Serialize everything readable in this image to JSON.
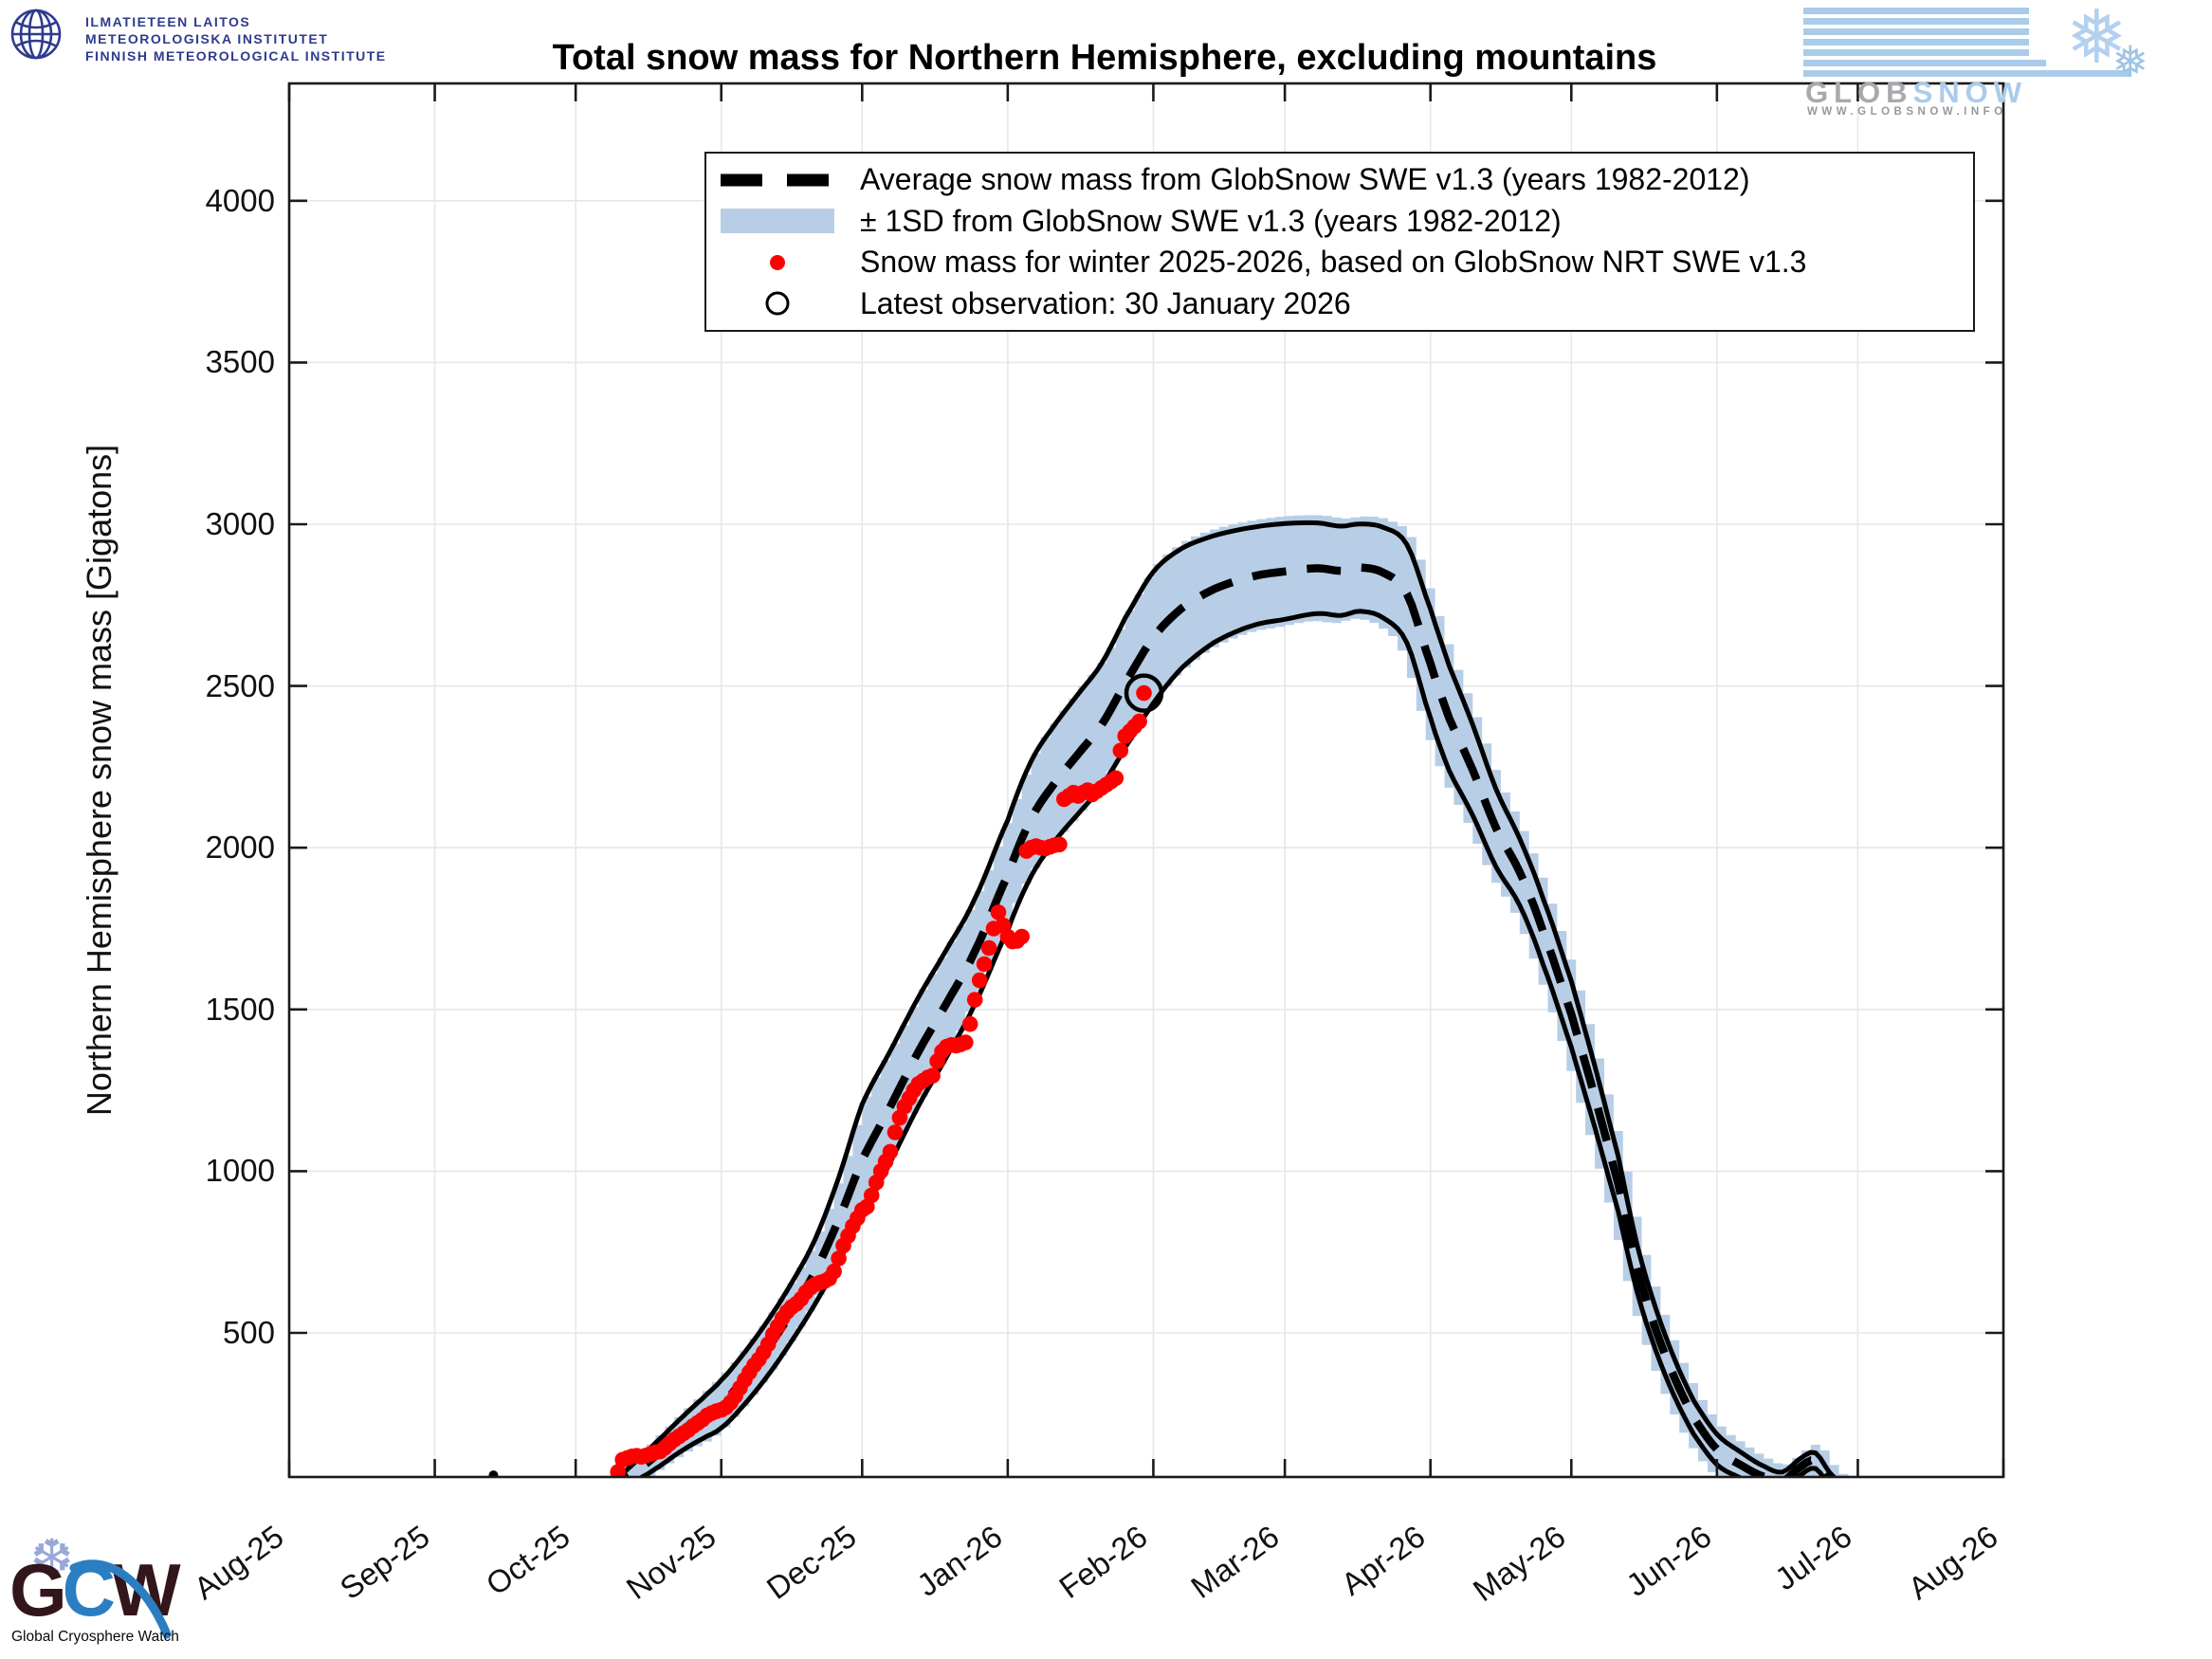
{
  "header": {
    "fmi": {
      "line1": "ILMATIETEEN LAITOS",
      "line2": "METEOROLOGISKA INSTITUTET",
      "line3": "FINNISH METEOROLOGICAL INSTITUTE"
    },
    "globsnow": {
      "word_left": "GLOB",
      "word_right": "SNOW",
      "url": "WWW.GLOBSNOW.INFO"
    }
  },
  "footer": {
    "gcw": {
      "letter1": "G",
      "letter2": "C",
      "letter3": "W",
      "caption": "Global Cryosphere Watch"
    }
  },
  "chart_data": {
    "type": "line",
    "title": "Total snow mass for Northern Hemisphere, excluding mountains",
    "ylabel": "Northern Hemisphere snow mass [Gigatons]",
    "y_axis": {
      "ticks": [
        500,
        1000,
        1500,
        2000,
        2500,
        3000,
        3500,
        4000
      ],
      "range": [
        50,
        4390
      ],
      "unit": "Gigatons",
      "grid": true
    },
    "x_axis": {
      "grid": true,
      "ticks": [
        {
          "label": "Aug-25",
          "day": 0
        },
        {
          "label": "Sep-25",
          "day": 31
        },
        {
          "label": "Oct-25",
          "day": 61
        },
        {
          "label": "Nov-25",
          "day": 92
        },
        {
          "label": "Dec-25",
          "day": 122
        },
        {
          "label": "Jan-26",
          "day": 153
        },
        {
          "label": "Feb-26",
          "day": 184
        },
        {
          "label": "Mar-26",
          "day": 212
        },
        {
          "label": "Apr-26",
          "day": 243
        },
        {
          "label": "May-26",
          "day": 273
        },
        {
          "label": "Jun-26",
          "day": 304
        },
        {
          "label": "Jul-26",
          "day": 334
        },
        {
          "label": "Aug-26",
          "day": 365
        }
      ]
    },
    "legend": [
      {
        "marker": "dashed-line",
        "label": "Average snow mass from GlobSnow SWE v1.3 (years 1982-2012)"
      },
      {
        "marker": "band",
        "label": "± 1SD from GlobSnow SWE v1.3 (years 1982-2012)"
      },
      {
        "marker": "red-dot",
        "label": "Snow mass for winter 2025-2026, based on GlobSnow NRT SWE v1.3"
      },
      {
        "marker": "open-circle",
        "label": "Latest observation: 30 January 2026"
      }
    ],
    "avg_band": {
      "name": "Average ± 1SD, GlobSnow SWE v1.3 (1982-2012)",
      "points_day_mean_sd": [
        [
          66,
          8,
          6
        ],
        [
          70,
          35,
          18
        ],
        [
          74,
          75,
          30
        ],
        [
          78,
          120,
          40
        ],
        [
          83,
          180,
          50
        ],
        [
          88,
          235,
          62
        ],
        [
          92,
          280,
          74
        ],
        [
          97,
          360,
          80
        ],
        [
          102,
          455,
          85
        ],
        [
          107,
          565,
          90
        ],
        [
          112,
          690,
          100
        ],
        [
          117,
          850,
          130
        ],
        [
          122,
          1035,
          172
        ],
        [
          128,
          1200,
          172
        ],
        [
          134,
          1370,
          168
        ],
        [
          140,
          1520,
          166
        ],
        [
          146,
          1680,
          163
        ],
        [
          153,
          1915,
          170
        ],
        [
          158,
          2090,
          178
        ],
        [
          163,
          2200,
          180
        ],
        [
          168,
          2290,
          185
        ],
        [
          173,
          2380,
          190
        ],
        [
          178,
          2510,
          200
        ],
        [
          184,
          2650,
          203
        ],
        [
          190,
          2740,
          185
        ],
        [
          197,
          2800,
          165
        ],
        [
          205,
          2838,
          152
        ],
        [
          212,
          2854,
          148
        ],
        [
          219,
          2864,
          140
        ],
        [
          224,
          2856,
          138
        ],
        [
          228,
          2866,
          135
        ],
        [
          233,
          2850,
          140
        ],
        [
          238,
          2785,
          152
        ],
        [
          243,
          2570,
          168
        ],
        [
          247,
          2400,
          162
        ],
        [
          252,
          2240,
          140
        ],
        [
          257,
          2060,
          120
        ],
        [
          262,
          1925,
          103
        ],
        [
          267,
          1740,
          102
        ],
        [
          273,
          1485,
          102
        ],
        [
          278,
          1230,
          95
        ],
        [
          283,
          960,
          85
        ],
        [
          287,
          700,
          73
        ],
        [
          291,
          510,
          65
        ],
        [
          295,
          360,
          58
        ],
        [
          299,
          240,
          52
        ],
        [
          304,
          140,
          47
        ],
        [
          309,
          92,
          40
        ],
        [
          314,
          55,
          33
        ],
        [
          318,
          42,
          28
        ],
        [
          322,
          88,
          26
        ],
        [
          325,
          105,
          24
        ],
        [
          328,
          48,
          20
        ],
        [
          331,
          18,
          12
        ],
        [
          333,
          6,
          6
        ]
      ]
    },
    "early_isolated_point": {
      "day": 43.5,
      "value": 60
    },
    "winter_2025_2026": {
      "name": "Snow mass winter 2025-2026, GlobSnow NRT SWE v1.3",
      "points_day_value": [
        [
          69,
          18
        ],
        [
          70,
          70
        ],
        [
          71,
          108
        ],
        [
          72,
          113
        ],
        [
          73,
          118
        ],
        [
          74,
          120
        ],
        [
          75,
          117
        ],
        [
          76,
          121
        ],
        [
          77,
          126
        ],
        [
          78,
          131
        ],
        [
          79,
          134
        ],
        [
          80,
          145
        ],
        [
          81,
          158
        ],
        [
          82,
          170
        ],
        [
          83,
          180
        ],
        [
          84,
          190
        ],
        [
          85,
          200
        ],
        [
          86,
          212
        ],
        [
          87,
          222
        ],
        [
          88,
          232
        ],
        [
          89,
          245
        ],
        [
          90,
          252
        ],
        [
          91,
          258
        ],
        [
          92,
          262
        ],
        [
          93,
          270
        ],
        [
          94,
          285
        ],
        [
          95,
          305
        ],
        [
          96,
          330
        ],
        [
          97,
          355
        ],
        [
          98,
          378
        ],
        [
          99,
          400
        ],
        [
          100,
          418
        ],
        [
          101,
          440
        ],
        [
          102,
          465
        ],
        [
          103,
          495
        ],
        [
          104,
          520
        ],
        [
          105,
          545
        ],
        [
          106,
          565
        ],
        [
          107,
          580
        ],
        [
          108,
          590
        ],
        [
          109,
          605
        ],
        [
          110,
          625
        ],
        [
          111,
          640
        ],
        [
          112,
          650
        ],
        [
          113,
          655
        ],
        [
          114,
          660
        ],
        [
          115,
          668
        ],
        [
          116,
          690
        ],
        [
          117,
          730
        ],
        [
          118,
          770
        ],
        [
          119,
          800
        ],
        [
          120,
          830
        ],
        [
          121,
          855
        ],
        [
          122,
          880
        ],
        [
          123,
          890
        ],
        [
          124,
          925
        ],
        [
          125,
          965
        ],
        [
          126,
          1000
        ],
        [
          127,
          1030
        ],
        [
          128,
          1060
        ],
        [
          129,
          1120
        ],
        [
          130,
          1165
        ],
        [
          131,
          1200
        ],
        [
          132,
          1225
        ],
        [
          133,
          1250
        ],
        [
          134,
          1270
        ],
        [
          135,
          1280
        ],
        [
          136,
          1290
        ],
        [
          137,
          1295
        ],
        [
          138,
          1340
        ],
        [
          139,
          1370
        ],
        [
          140,
          1385
        ],
        [
          141,
          1390
        ],
        [
          142,
          1388
        ],
        [
          143,
          1392
        ],
        [
          144,
          1398
        ],
        [
          145,
          1455
        ],
        [
          146,
          1530
        ],
        [
          147,
          1590
        ],
        [
          148,
          1640
        ],
        [
          149,
          1690
        ],
        [
          150,
          1750
        ],
        [
          151,
          1800
        ],
        [
          152,
          1760
        ],
        [
          153,
          1725
        ],
        [
          154,
          1710
        ],
        [
          155,
          1712
        ],
        [
          156,
          1725
        ],
        [
          157,
          1990
        ],
        [
          158,
          2000
        ],
        [
          159,
          2005
        ],
        [
          160,
          2000
        ],
        [
          161,
          1998
        ],
        [
          162,
          2003
        ],
        [
          163,
          2008
        ],
        [
          164,
          2010
        ],
        [
          165,
          2150
        ],
        [
          166,
          2160
        ],
        [
          167,
          2170
        ],
        [
          168,
          2160
        ],
        [
          169,
          2170
        ],
        [
          170,
          2178
        ],
        [
          171,
          2165
        ],
        [
          172,
          2175
        ],
        [
          173,
          2185
        ],
        [
          174,
          2195
        ],
        [
          175,
          2205
        ],
        [
          176,
          2215
        ],
        [
          177,
          2300
        ],
        [
          178,
          2345
        ],
        [
          179,
          2360
        ],
        [
          180,
          2375
        ],
        [
          181,
          2390
        ],
        [
          182,
          2478
        ]
      ]
    },
    "latest_observation": {
      "day": 182,
      "value": 2478,
      "date": "30 January 2026"
    },
    "colors": {
      "band_fill": "#b8cee6",
      "curve": "#000000",
      "observations": "#ff0000",
      "grid": "#e7e7e7",
      "axis": "#1a1a1a"
    }
  }
}
